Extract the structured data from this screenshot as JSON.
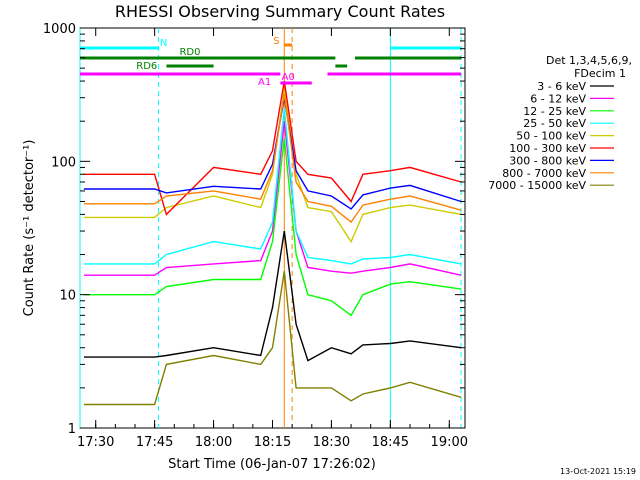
{
  "chart_data": {
    "type": "line",
    "title": "RHESSI Observing Summary Count Rates",
    "xlabel": "Start Time (06-Jan-07 17:26:02)",
    "ylabel": "Count Rate (s⁻¹ detector⁻¹)",
    "yscale": "log",
    "ylim": [
      1,
      1000
    ],
    "xlim": [
      "17:26",
      "19:04"
    ],
    "x_ticks": [
      "17:30",
      "17:45",
      "18:00",
      "18:15",
      "18:30",
      "18:45",
      "19:00"
    ],
    "y_ticks": [
      "1",
      "10",
      "100",
      "1000"
    ],
    "legend_header": [
      "Det 1,3,4,5,6,9,",
      "FDecim 1"
    ],
    "legend_position": "right",
    "footer": "13-Oct-2021 15:19",
    "x": [
      "17:27",
      "17:45",
      "17:48",
      "18:00",
      "18:12",
      "18:15",
      "18:18",
      "18:21",
      "18:24",
      "18:30",
      "18:35",
      "18:38",
      "18:45",
      "18:50",
      "19:03"
    ],
    "series": [
      {
        "name": "3 - 6 keV",
        "color": "#000000",
        "values": [
          3.4,
          3.4,
          3.5,
          4,
          3.5,
          8,
          30,
          6,
          3.2,
          4,
          3.6,
          4.2,
          4.3,
          4.5,
          4
        ]
      },
      {
        "name": "6 - 12 keV",
        "color": "#ff00ff",
        "values": [
          14,
          14,
          16,
          17,
          18,
          30,
          200,
          30,
          16,
          15,
          14.5,
          15,
          16,
          17,
          14
        ]
      },
      {
        "name": "12 - 25 keV",
        "color": "#00ff00",
        "values": [
          10,
          10,
          11.5,
          13,
          13,
          25,
          150,
          20,
          10,
          9,
          7,
          10,
          12,
          12.5,
          11
        ]
      },
      {
        "name": "25 - 50 keV",
        "color": "#00ffff",
        "values": [
          17,
          17,
          20,
          25,
          22,
          35,
          250,
          30,
          19,
          18,
          17,
          18.5,
          19,
          20,
          17
        ]
      },
      {
        "name": "50 - 100 keV",
        "color": "#cccc00",
        "values": [
          38,
          38,
          45,
          55,
          45,
          80,
          350,
          80,
          45,
          42,
          25,
          40,
          45,
          47,
          40
        ]
      },
      {
        "name": "100 - 300 keV",
        "color": "#ff0000",
        "values": [
          80,
          80,
          40,
          90,
          80,
          120,
          400,
          100,
          80,
          75,
          50,
          80,
          85,
          90,
          70
        ]
      },
      {
        "name": "300 - 800 keV",
        "color": "#0000ff",
        "values": [
          62,
          62,
          58,
          65,
          62,
          95,
          300,
          85,
          60,
          55,
          44,
          56,
          63,
          66,
          50
        ]
      },
      {
        "name": "800 - 7000 keV",
        "color": "#ff8000",
        "values": [
          48,
          48,
          55,
          60,
          52,
          85,
          320,
          70,
          50,
          46,
          35,
          47,
          52,
          55,
          43
        ]
      },
      {
        "name": "7000 - 15000 keV",
        "color": "#808000",
        "values": [
          1.5,
          1.5,
          3,
          3.5,
          3,
          4,
          15,
          2,
          2,
          2,
          1.6,
          1.8,
          2,
          2.2,
          1.7
        ]
      }
    ],
    "flags": [
      {
        "label": "N",
        "color": "#00ffff",
        "segments": [
          [
            "17:26",
            "17:46"
          ],
          [
            "18:45",
            "19:03"
          ]
        ]
      },
      {
        "label": "RD0",
        "color": "#008000",
        "segments": [
          [
            "17:26",
            "18:02"
          ],
          [
            "18:02",
            "18:31"
          ],
          [
            "18:36",
            "19:03"
          ]
        ]
      },
      {
        "label": "RD6",
        "color": "#008000",
        "segments": [
          [
            "17:48",
            "18:00"
          ],
          [
            "18:31",
            "18:34"
          ]
        ]
      },
      {
        "label": "S",
        "color": "#ff8000",
        "segments": [
          [
            "18:18",
            "18:20"
          ]
        ]
      },
      {
        "label": "A1",
        "color": "#ff00ff",
        "segments": [
          [
            "17:26",
            "18:17"
          ],
          [
            "18:29",
            "19:03"
          ]
        ]
      },
      {
        "label": "A0",
        "color": "#ff00ff",
        "segments": [
          [
            "18:17",
            "18:25"
          ]
        ]
      }
    ],
    "markers": [
      {
        "time": "17:26",
        "color": "#00ffff",
        "style": "solid"
      },
      {
        "time": "17:46",
        "color": "#00ffff",
        "style": "dashed"
      },
      {
        "time": "18:18",
        "color": "#ff8000",
        "style": "solid"
      },
      {
        "time": "18:20",
        "color": "#ff8000",
        "style": "dashed"
      },
      {
        "time": "18:45",
        "color": "#00ffff",
        "style": "solid"
      },
      {
        "time": "19:03",
        "color": "#00ffff",
        "style": "dashed"
      }
    ]
  }
}
